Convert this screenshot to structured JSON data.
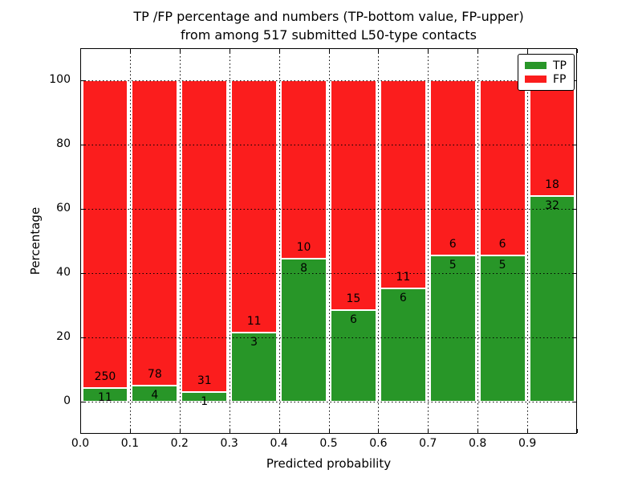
{
  "chart_data": {
    "type": "bar",
    "stacked": true,
    "title_line1": "TP /FP percentage and numbers (TP-bottom value, FP-upper)",
    "title_line2": "from among 517 submitted L50-type contacts",
    "xlabel": "Predicted probability",
    "ylabel": "Percentage",
    "x_tick_labels": [
      "0.0",
      "0.1",
      "0.2",
      "0.3",
      "0.4",
      "0.5",
      "0.6",
      "0.7",
      "0.8",
      "0.9"
    ],
    "y_tick_labels": [
      0,
      20,
      40,
      60,
      80,
      100
    ],
    "xlim": [
      0.0,
      1.0
    ],
    "ylim_visible": [
      -10,
      110
    ],
    "grid": "dotted",
    "total_contacts": 517,
    "bins": [
      {
        "x_start": 0.0,
        "x_end": 0.1,
        "tp": 11,
        "fp": 250
      },
      {
        "x_start": 0.1,
        "x_end": 0.2,
        "tp": 4,
        "fp": 78
      },
      {
        "x_start": 0.2,
        "x_end": 0.3,
        "tp": 1,
        "fp": 31
      },
      {
        "x_start": 0.3,
        "x_end": 0.4,
        "tp": 3,
        "fp": 11
      },
      {
        "x_start": 0.4,
        "x_end": 0.5,
        "tp": 8,
        "fp": 10
      },
      {
        "x_start": 0.5,
        "x_end": 0.6,
        "tp": 6,
        "fp": 15
      },
      {
        "x_start": 0.6,
        "x_end": 0.7,
        "tp": 6,
        "fp": 11
      },
      {
        "x_start": 0.7,
        "x_end": 0.8,
        "tp": 5,
        "fp": 6
      },
      {
        "x_start": 0.8,
        "x_end": 0.9,
        "tp": 5,
        "fp": 6
      },
      {
        "x_start": 0.9,
        "x_end": 1.0,
        "tp": 32,
        "fp": 18
      }
    ],
    "legend": [
      {
        "label": "TP",
        "color": "#289628"
      },
      {
        "label": "FP",
        "color": "#fb1d1d"
      }
    ],
    "legend_position": "upper right",
    "colors": {
      "tp": "#289628",
      "fp": "#fb1d1d",
      "grid": "#000000",
      "text": "#000000",
      "background": "#ffffff"
    }
  }
}
